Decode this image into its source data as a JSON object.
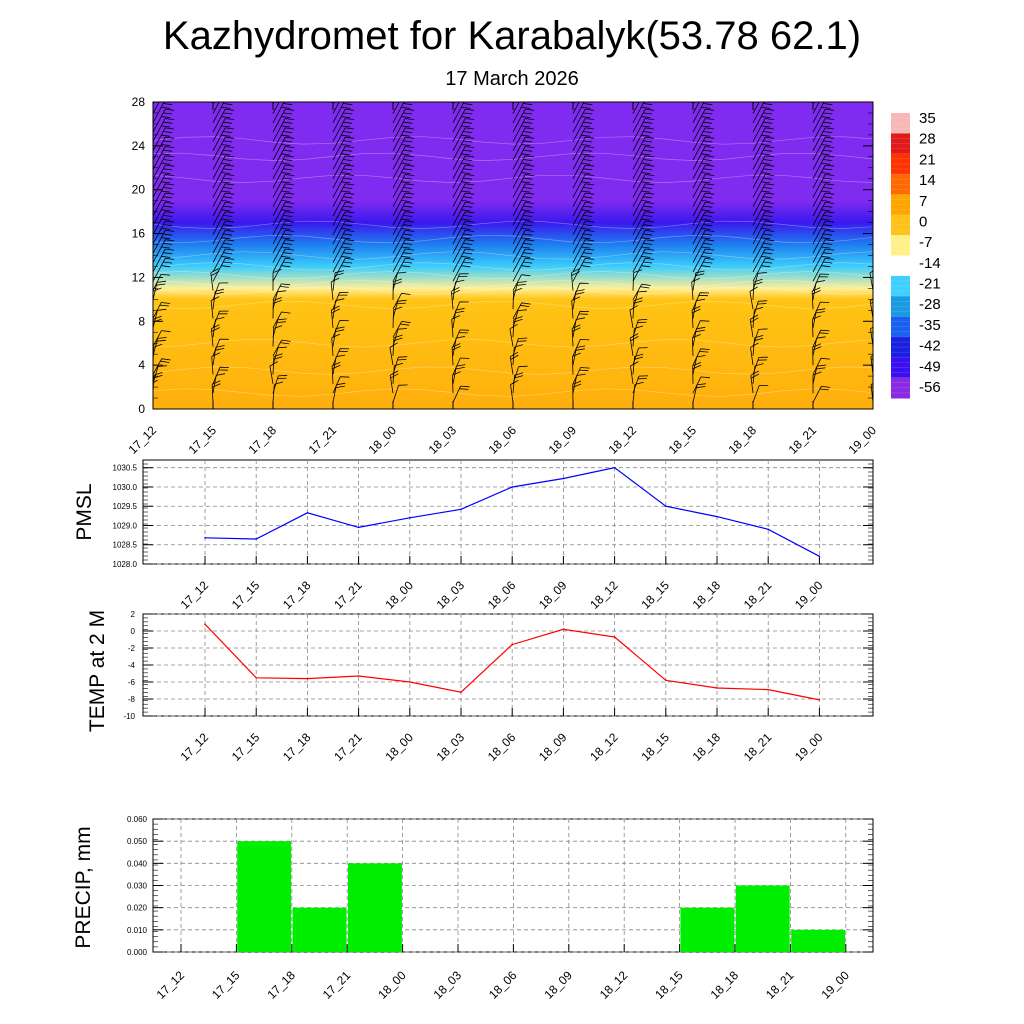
{
  "title": "Kazhydromet for Karabalyk(53.78 62.1)",
  "subtitle": "17 March 2026",
  "chart_data": [
    {
      "type": "heatmap",
      "name": "Cross-section temperature with wind barbs",
      "x": [
        "17_12",
        "17_15",
        "17_18",
        "17_21",
        "18_00",
        "18_03",
        "18_06",
        "18_09",
        "18_12",
        "18_15",
        "18_18",
        "18_21",
        "19_00"
      ],
      "ylim": [
        0,
        28
      ],
      "yticks": [
        0,
        4,
        8,
        12,
        16,
        20,
        24,
        28
      ],
      "colorbar": {
        "labels": [
          "35",
          "28",
          "21",
          "14",
          "7",
          "0",
          "-7",
          "-14",
          "-21",
          "-28",
          "-35",
          "-42",
          "-49",
          "-56"
        ],
        "colors": [
          "#f7b7b7",
          "#e01a1a",
          "#ff3300",
          "#ff6a00",
          "#ffa500",
          "#ffc21a",
          "#fff08a",
          "#ffffff",
          "#40d0ff",
          "#1a9ae0",
          "#1a60f0",
          "#1a20e0",
          "#3a10f0",
          "#8a2be2"
        ]
      },
      "temperature_profile": [
        {
          "level": 0,
          "value": 12
        },
        {
          "level": 3,
          "value": 10
        },
        {
          "level": 7,
          "value": 8
        },
        {
          "level": 10,
          "value": 6
        },
        {
          "level": 11,
          "value": -10
        },
        {
          "level": 13,
          "value": -22
        },
        {
          "level": 15,
          "value": -35
        },
        {
          "level": 17,
          "value": -50
        },
        {
          "level": 19,
          "value": -56
        },
        {
          "level": 28,
          "value": -56
        }
      ]
    },
    {
      "type": "line",
      "ylabel": "PMSL",
      "x": [
        "17_12",
        "17_15",
        "17_18",
        "17_21",
        "18_00",
        "18_03",
        "18_06",
        "18_09",
        "18_12",
        "18_15",
        "18_18",
        "18_21",
        "19_00"
      ],
      "values": [
        1028.68,
        1028.65,
        1029.33,
        1028.95,
        1029.2,
        1029.42,
        1030.0,
        1030.22,
        1030.5,
        1029.5,
        1029.23,
        1028.9,
        1028.2
      ],
      "ylim": [
        1028.0,
        1030.7
      ],
      "yticks": [
        "1028.0",
        "1028.5",
        "1029.0",
        "1029.5",
        "1030.0",
        "1030.5"
      ],
      "color": "#0000ff"
    },
    {
      "type": "line",
      "ylabel": "TEMP at 2 M",
      "x": [
        "17_12",
        "17_15",
        "17_18",
        "17_21",
        "18_00",
        "18_03",
        "18_06",
        "18_09",
        "18_12",
        "18_15",
        "18_18",
        "18_21",
        "19_00"
      ],
      "values": [
        0.8,
        -5.5,
        -5.6,
        -5.3,
        -6.0,
        -7.2,
        -1.6,
        0.2,
        -0.7,
        -5.8,
        -6.7,
        -6.9,
        -8.1
      ],
      "ylim": [
        -10,
        2
      ],
      "yticks": [
        "2",
        "0",
        "-2",
        "-4",
        "-6",
        "-8",
        "-10"
      ],
      "color": "#ff0000"
    },
    {
      "type": "bar",
      "ylabel": "PRECIP, mm",
      "categories": [
        "17_12",
        "17_15",
        "17_18",
        "17_21",
        "18_00",
        "18_03",
        "18_06",
        "18_09",
        "18_12",
        "18_15",
        "18_18",
        "18_21",
        "19_00"
      ],
      "values": [
        0,
        0.05,
        0.02,
        0.04,
        0,
        0,
        0,
        0,
        0,
        0.02,
        0.03,
        0.01,
        0
      ],
      "ylim": [
        0,
        0.06
      ],
      "yticks": [
        "0.000",
        "0.010",
        "0.020",
        "0.030",
        "0.040",
        "0.050",
        "0.060"
      ],
      "color": "#00ee00"
    }
  ]
}
